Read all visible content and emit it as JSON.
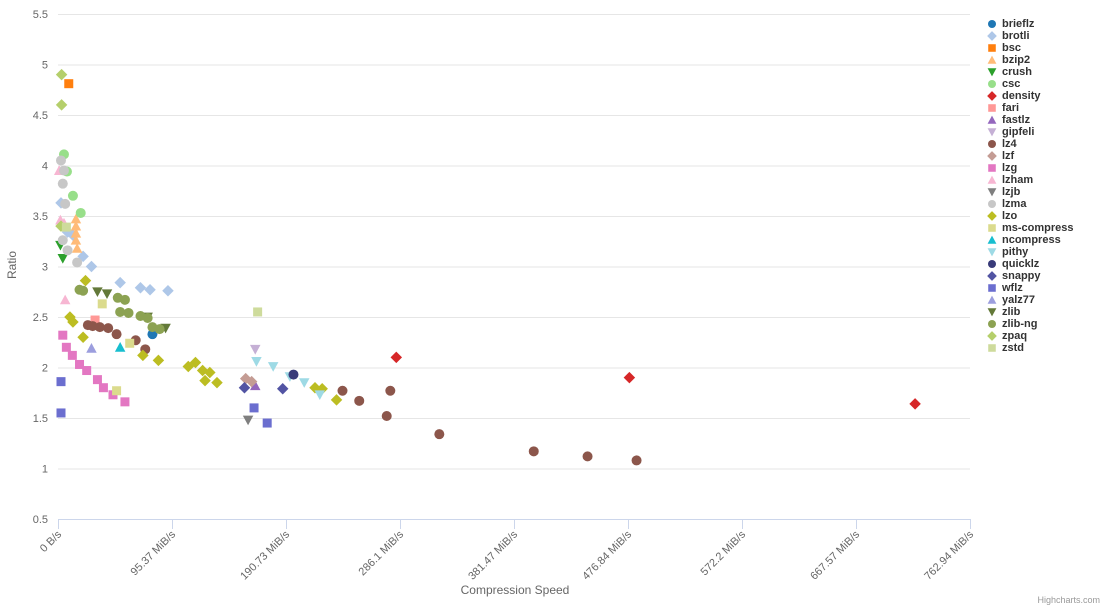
{
  "chart_data": {
    "type": "scatter",
    "title": "",
    "xlabel": "Compression Speed",
    "ylabel": "Ratio",
    "credit": "Highcharts.com",
    "xlim": [
      0,
      762.94
    ],
    "ylim": [
      0.5,
      5.5
    ],
    "grid": "horizontal-only",
    "legend_position": "right",
    "x_ticks": [
      {
        "value": 0,
        "label": "0 B/s"
      },
      {
        "value": 95.37,
        "label": "95.37 MiB/s"
      },
      {
        "value": 190.73,
        "label": "190.73 MiB/s"
      },
      {
        "value": 286.1,
        "label": "286.1 MiB/s"
      },
      {
        "value": 381.47,
        "label": "381.47 MiB/s"
      },
      {
        "value": 476.84,
        "label": "476.84 MiB/s"
      },
      {
        "value": 572.2,
        "label": "572.2 MiB/s"
      },
      {
        "value": 667.57,
        "label": "667.57 MiB/s"
      },
      {
        "value": 762.94,
        "label": "762.94 MiB/s"
      }
    ],
    "y_ticks": [
      {
        "value": 0.5,
        "label": "0.5"
      },
      {
        "value": 1,
        "label": "1"
      },
      {
        "value": 1.5,
        "label": "1.5"
      },
      {
        "value": 2,
        "label": "2"
      },
      {
        "value": 2.5,
        "label": "2.5"
      },
      {
        "value": 3,
        "label": "3"
      },
      {
        "value": 3.5,
        "label": "3.5"
      },
      {
        "value": 4,
        "label": "4"
      },
      {
        "value": 4.5,
        "label": "4.5"
      },
      {
        "value": 5,
        "label": "5"
      },
      {
        "value": 5.5,
        "label": "5.5"
      }
    ],
    "series": [
      {
        "name": "brieflz",
        "color": "#1f77b4",
        "symbol": "circle",
        "points": [
          [
            79,
            2.33
          ]
        ]
      },
      {
        "name": "brotli",
        "color": "#aec7e8",
        "symbol": "diamond",
        "points": [
          [
            2.5,
            3.63
          ],
          [
            8,
            3.34
          ],
          [
            12.5,
            3.31
          ],
          [
            21,
            3.1
          ],
          [
            28,
            3.0
          ],
          [
            52,
            2.84
          ],
          [
            69,
            2.79
          ],
          [
            77,
            2.77
          ],
          [
            92,
            2.76
          ]
        ]
      },
      {
        "name": "bsc",
        "color": "#ff7f0e",
        "symbol": "square",
        "points": [
          [
            9,
            4.81
          ]
        ]
      },
      {
        "name": "bzip2",
        "color": "#ffbb78",
        "symbol": "triangle",
        "points": [
          [
            15,
            3.47
          ],
          [
            15,
            3.4
          ],
          [
            15,
            3.33
          ],
          [
            15,
            3.26
          ],
          [
            16,
            3.18
          ]
        ]
      },
      {
        "name": "crush",
        "color": "#2ca02c",
        "symbol": "triangle-down",
        "points": [
          [
            2,
            3.21
          ],
          [
            4,
            3.08
          ]
        ]
      },
      {
        "name": "csc",
        "color": "#98df8a",
        "symbol": "circle",
        "points": [
          [
            5,
            4.11
          ],
          [
            7.5,
            3.94
          ],
          [
            12.5,
            3.7
          ],
          [
            19,
            3.53
          ]
        ]
      },
      {
        "name": "density",
        "color": "#d62728",
        "symbol": "diamond",
        "points": [
          [
            283,
            2.1
          ],
          [
            478,
            1.9
          ],
          [
            717,
            1.64
          ]
        ]
      },
      {
        "name": "fari",
        "color": "#ff9896",
        "symbol": "square",
        "points": [
          [
            31,
            2.47
          ]
        ]
      },
      {
        "name": "fastlz",
        "color": "#9467bd",
        "symbol": "triangle",
        "points": [
          [
            165,
            1.82
          ]
        ]
      },
      {
        "name": "gipfeli",
        "color": "#c5b0d5",
        "symbol": "triangle-down",
        "points": [
          [
            165,
            2.18
          ]
        ]
      },
      {
        "name": "lz4",
        "color": "#8c564b",
        "symbol": "circle",
        "points": [
          [
            25,
            2.42
          ],
          [
            29,
            2.41
          ],
          [
            35,
            2.4
          ],
          [
            42,
            2.39
          ],
          [
            49,
            2.33
          ],
          [
            65,
            2.27
          ],
          [
            73,
            2.18
          ],
          [
            238,
            1.77
          ],
          [
            252,
            1.67
          ],
          [
            278,
            1.77
          ],
          [
            275,
            1.52
          ],
          [
            319,
            1.34
          ],
          [
            398,
            1.17
          ],
          [
            443,
            1.12
          ],
          [
            484,
            1.08
          ]
        ]
      },
      {
        "name": "lzf",
        "color": "#c49c94",
        "symbol": "diamond",
        "points": [
          [
            157,
            1.89
          ],
          [
            162,
            1.86
          ]
        ]
      },
      {
        "name": "lzg",
        "color": "#e377c2",
        "symbol": "square",
        "points": [
          [
            4,
            2.32
          ],
          [
            7,
            2.2
          ],
          [
            12,
            2.12
          ],
          [
            18,
            2.03
          ],
          [
            24,
            1.97
          ],
          [
            33,
            1.88
          ],
          [
            38,
            1.8
          ],
          [
            46,
            1.73
          ],
          [
            56,
            1.66
          ]
        ]
      },
      {
        "name": "lzham",
        "color": "#f7b6d2",
        "symbol": "triangle",
        "points": [
          [
            1,
            3.95
          ],
          [
            2,
            3.46
          ],
          [
            5,
            3.43
          ],
          [
            6,
            2.67
          ]
        ]
      },
      {
        "name": "lzjb",
        "color": "#7f7f7f",
        "symbol": "triangle-down",
        "points": [
          [
            159,
            1.48
          ]
        ]
      },
      {
        "name": "lzma",
        "color": "#c7c7c7",
        "symbol": "circle",
        "points": [
          [
            2.5,
            4.05
          ],
          [
            5,
            3.95
          ],
          [
            4,
            3.82
          ],
          [
            6,
            3.62
          ],
          [
            4,
            3.26
          ],
          [
            8,
            3.16
          ],
          [
            16,
            3.04
          ]
        ]
      },
      {
        "name": "lzo",
        "color": "#bcbd22",
        "symbol": "diamond",
        "points": [
          [
            23,
            2.86
          ],
          [
            10,
            2.5
          ],
          [
            12.5,
            2.45
          ],
          [
            21,
            2.3
          ],
          [
            71,
            2.12
          ],
          [
            84,
            2.07
          ],
          [
            109,
            2.01
          ],
          [
            115,
            2.05
          ],
          [
            121,
            1.97
          ],
          [
            127,
            1.95
          ],
          [
            123,
            1.87
          ],
          [
            133,
            1.85
          ],
          [
            215,
            1.8
          ],
          [
            221,
            1.79
          ],
          [
            233,
            1.68
          ]
        ]
      },
      {
        "name": "ms-compress",
        "color": "#dbdb8d",
        "symbol": "square",
        "points": [
          [
            37,
            2.63
          ],
          [
            60,
            2.24
          ],
          [
            49,
            1.77
          ]
        ]
      },
      {
        "name": "ncompress",
        "color": "#17becf",
        "symbol": "triangle",
        "points": [
          [
            52,
            2.2
          ]
        ]
      },
      {
        "name": "pithy",
        "color": "#9edae5",
        "symbol": "triangle-down",
        "points": [
          [
            166,
            2.06
          ],
          [
            180,
            2.01
          ],
          [
            194,
            1.91
          ],
          [
            206,
            1.85
          ],
          [
            219,
            1.73
          ]
        ]
      },
      {
        "name": "quicklz",
        "color": "#393b79",
        "symbol": "circle",
        "points": [
          [
            197,
            1.93
          ]
        ]
      },
      {
        "name": "snappy",
        "color": "#5254a3",
        "symbol": "diamond",
        "points": [
          [
            156,
            1.8
          ],
          [
            188,
            1.79
          ]
        ]
      },
      {
        "name": "wflz",
        "color": "#6b6ecf",
        "symbol": "square",
        "points": [
          [
            2.5,
            1.86
          ],
          [
            2.5,
            1.55
          ],
          [
            164,
            1.6
          ],
          [
            175,
            1.45
          ]
        ]
      },
      {
        "name": "yalz77",
        "color": "#9c9ede",
        "symbol": "triangle",
        "points": [
          [
            28,
            2.19
          ]
        ]
      },
      {
        "name": "zlib",
        "color": "#637939",
        "symbol": "triangle-down",
        "points": [
          [
            33,
            2.75
          ],
          [
            41,
            2.73
          ],
          [
            75,
            2.5
          ],
          [
            90,
            2.39
          ]
        ]
      },
      {
        "name": "zlib-ng",
        "color": "#8ca252",
        "symbol": "circle",
        "points": [
          [
            18,
            2.77
          ],
          [
            21,
            2.76
          ],
          [
            50,
            2.69
          ],
          [
            56,
            2.67
          ],
          [
            52,
            2.55
          ],
          [
            59,
            2.54
          ],
          [
            69,
            2.51
          ],
          [
            75,
            2.49
          ],
          [
            79,
            2.4
          ],
          [
            85,
            2.38
          ]
        ]
      },
      {
        "name": "zpaq",
        "color": "#b5cf6b",
        "symbol": "diamond",
        "points": [
          [
            3,
            4.9
          ],
          [
            3,
            4.6
          ],
          [
            2.5,
            3.4
          ]
        ]
      },
      {
        "name": "zstd",
        "color": "#cedb9c",
        "symbol": "square",
        "points": [
          [
            7,
            3.39
          ],
          [
            167,
            2.55
          ]
        ]
      }
    ]
  }
}
